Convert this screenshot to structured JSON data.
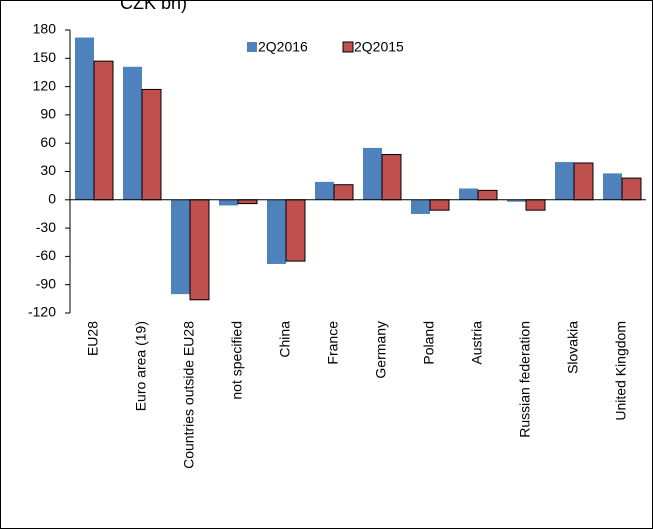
{
  "chart_data": {
    "type": "bar",
    "title": "CZK bn)",
    "categories": [
      "EU28",
      "Euro area  (19)",
      "Countries outside EU28",
      "not specified",
      "China",
      "France",
      "Germany",
      "Poland",
      "Austria",
      "Russian federation",
      "Slovakia",
      "United Kingdom"
    ],
    "series": [
      {
        "name": "2Q2016",
        "color": "#4f81bd",
        "values": [
          172,
          141,
          -100,
          -6,
          -68,
          19,
          55,
          -15,
          12,
          -2,
          40,
          28
        ]
      },
      {
        "name": "2Q2015",
        "color": "#c0504d",
        "values": [
          147,
          117,
          -106,
          -4,
          -65,
          16,
          48,
          -11,
          10,
          -11,
          39,
          23
        ]
      }
    ],
    "ylim": [
      -120,
      180
    ],
    "yticks": [
      -120,
      -90,
      -60,
      -30,
      0,
      30,
      60,
      90,
      120,
      150,
      180
    ],
    "grid": false
  }
}
